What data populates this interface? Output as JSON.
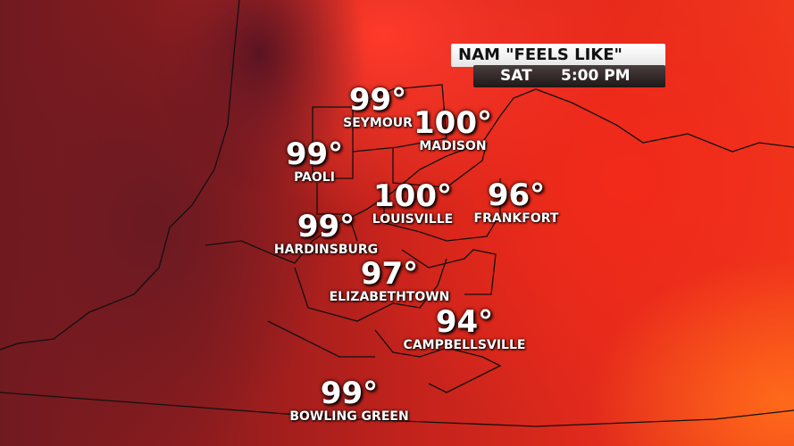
{
  "header": {
    "title": "NAM \"FEELS LIKE\"",
    "day": "SAT",
    "time": "5:00 PM"
  },
  "colors": {
    "cool": "#701a20",
    "warm": "#e02a1c",
    "hot": "#ff6a1a"
  },
  "cities": [
    {
      "name": "SEYMOUR",
      "temp": "99°"
    },
    {
      "name": "MADISON",
      "temp": "100°"
    },
    {
      "name": "PAOLI",
      "temp": "99°"
    },
    {
      "name": "LOUISVILLE",
      "temp": "100°"
    },
    {
      "name": "FRANKFORT",
      "temp": "96°"
    },
    {
      "name": "HARDINSBURG",
      "temp": "99°"
    },
    {
      "name": "ELIZABETHTOWN",
      "temp": "97°"
    },
    {
      "name": "CAMPBELLSVILLE",
      "temp": "94°"
    },
    {
      "name": "BOWLING GREEN",
      "temp": "99°"
    }
  ]
}
